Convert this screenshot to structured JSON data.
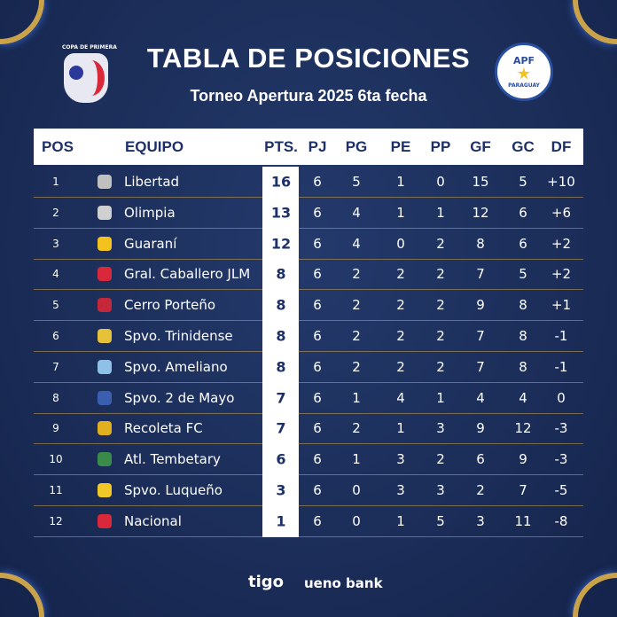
{
  "title": "TABLA DE POSICIONES",
  "subtitle": "Torneo Apertura 2025 6ta fecha",
  "logos": {
    "left": "COPA DE PRIMERA",
    "right": "APF",
    "right_sub": "PARAGUAY"
  },
  "columns": [
    "POS",
    "EQUIPO",
    "PTS.",
    "PJ",
    "PG",
    "PE",
    "PP",
    "GF",
    "GC",
    "DF"
  ],
  "rows": [
    {
      "pos": "1",
      "team": "Libertad",
      "icon_color": "#c0c0c0",
      "pts": "16",
      "pj": "6",
      "pg": "5",
      "pe": "1",
      "pp": "0",
      "gf": "15",
      "gc": "5",
      "df": "+10"
    },
    {
      "pos": "2",
      "team": "Olimpia",
      "icon_color": "#d0d0d0",
      "pts": "13",
      "pj": "6",
      "pg": "4",
      "pe": "1",
      "pp": "1",
      "gf": "12",
      "gc": "6",
      "df": "+6"
    },
    {
      "pos": "3",
      "team": "Guaraní",
      "icon_color": "#f4c21f",
      "pts": "12",
      "pj": "6",
      "pg": "4",
      "pe": "0",
      "pp": "2",
      "gf": "8",
      "gc": "6",
      "df": "+2"
    },
    {
      "pos": "4",
      "team": "Gral. Caballero JLM",
      "icon_color": "#d8283a",
      "pts": "8",
      "pj": "6",
      "pg": "2",
      "pe": "2",
      "pp": "2",
      "gf": "7",
      "gc": "5",
      "df": "+2"
    },
    {
      "pos": "5",
      "team": "Cerro Porteño",
      "icon_color": "#c4283a",
      "pts": "8",
      "pj": "6",
      "pg": "2",
      "pe": "2",
      "pp": "2",
      "gf": "9",
      "gc": "8",
      "df": "+1"
    },
    {
      "pos": "6",
      "team": "Spvo. Trinidense",
      "icon_color": "#e6c23a",
      "pts": "8",
      "pj": "6",
      "pg": "2",
      "pe": "2",
      "pp": "2",
      "gf": "7",
      "gc": "8",
      "df": "-1"
    },
    {
      "pos": "7",
      "team": "Spvo. Ameliano",
      "icon_color": "#8fc0e8",
      "pts": "8",
      "pj": "6",
      "pg": "2",
      "pe": "2",
      "pp": "2",
      "gf": "7",
      "gc": "8",
      "df": "-1"
    },
    {
      "pos": "8",
      "team": "Spvo. 2 de Mayo",
      "icon_color": "#3b5fb0",
      "pts": "7",
      "pj": "6",
      "pg": "1",
      "pe": "4",
      "pp": "1",
      "gf": "4",
      "gc": "4",
      "df": "0"
    },
    {
      "pos": "9",
      "team": "Recoleta FC",
      "icon_color": "#e0b020",
      "pts": "7",
      "pj": "6",
      "pg": "2",
      "pe": "1",
      "pp": "3",
      "gf": "9",
      "gc": "12",
      "df": "-3"
    },
    {
      "pos": "10",
      "team": "Atl. Tembetary",
      "icon_color": "#3a8a4a",
      "pts": "6",
      "pj": "6",
      "pg": "1",
      "pe": "3",
      "pp": "2",
      "gf": "6",
      "gc": "9",
      "df": "-3"
    },
    {
      "pos": "11",
      "team": "Spvo. Luqueño",
      "icon_color": "#f0c828",
      "pts": "3",
      "pj": "6",
      "pg": "0",
      "pe": "3",
      "pp": "3",
      "gf": "2",
      "gc": "7",
      "df": "-5"
    },
    {
      "pos": "12",
      "team": "Nacional",
      "icon_color": "#d8283a",
      "pts": "1",
      "pj": "6",
      "pg": "0",
      "pe": "1",
      "pp": "5",
      "gf": "3",
      "gc": "11",
      "df": "-8"
    }
  ],
  "sponsors": [
    "tigo",
    "ueno bank"
  ],
  "colors": {
    "background": "#1c2f5c",
    "header_text": "#1d3068",
    "accent_gold": "#c9a24a"
  }
}
